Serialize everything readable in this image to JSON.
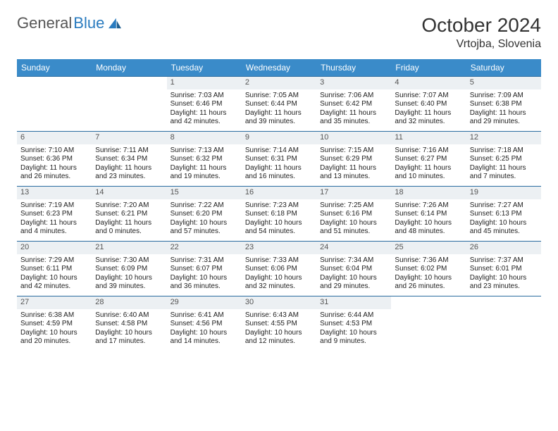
{
  "brand": {
    "name1": "General",
    "name2": "Blue"
  },
  "title": "October 2024",
  "location": "Vrtojba, Slovenia",
  "colors": {
    "header_bg": "#3a8bc9",
    "header_text": "#ffffff",
    "row_rule": "#2a6ca0",
    "daynum_bg": "#ecf0f3",
    "text": "#222222",
    "brand_gray": "#555555",
    "brand_blue": "#2a7bbf",
    "page_bg": "#ffffff"
  },
  "day_headers": [
    "Sunday",
    "Monday",
    "Tuesday",
    "Wednesday",
    "Thursday",
    "Friday",
    "Saturday"
  ],
  "weeks": [
    [
      null,
      null,
      {
        "n": "1",
        "sr": "Sunrise: 7:03 AM",
        "ss": "Sunset: 6:46 PM",
        "dl": "Daylight: 11 hours and 42 minutes."
      },
      {
        "n": "2",
        "sr": "Sunrise: 7:05 AM",
        "ss": "Sunset: 6:44 PM",
        "dl": "Daylight: 11 hours and 39 minutes."
      },
      {
        "n": "3",
        "sr": "Sunrise: 7:06 AM",
        "ss": "Sunset: 6:42 PM",
        "dl": "Daylight: 11 hours and 35 minutes."
      },
      {
        "n": "4",
        "sr": "Sunrise: 7:07 AM",
        "ss": "Sunset: 6:40 PM",
        "dl": "Daylight: 11 hours and 32 minutes."
      },
      {
        "n": "5",
        "sr": "Sunrise: 7:09 AM",
        "ss": "Sunset: 6:38 PM",
        "dl": "Daylight: 11 hours and 29 minutes."
      }
    ],
    [
      {
        "n": "6",
        "sr": "Sunrise: 7:10 AM",
        "ss": "Sunset: 6:36 PM",
        "dl": "Daylight: 11 hours and 26 minutes."
      },
      {
        "n": "7",
        "sr": "Sunrise: 7:11 AM",
        "ss": "Sunset: 6:34 PM",
        "dl": "Daylight: 11 hours and 23 minutes."
      },
      {
        "n": "8",
        "sr": "Sunrise: 7:13 AM",
        "ss": "Sunset: 6:32 PM",
        "dl": "Daylight: 11 hours and 19 minutes."
      },
      {
        "n": "9",
        "sr": "Sunrise: 7:14 AM",
        "ss": "Sunset: 6:31 PM",
        "dl": "Daylight: 11 hours and 16 minutes."
      },
      {
        "n": "10",
        "sr": "Sunrise: 7:15 AM",
        "ss": "Sunset: 6:29 PM",
        "dl": "Daylight: 11 hours and 13 minutes."
      },
      {
        "n": "11",
        "sr": "Sunrise: 7:16 AM",
        "ss": "Sunset: 6:27 PM",
        "dl": "Daylight: 11 hours and 10 minutes."
      },
      {
        "n": "12",
        "sr": "Sunrise: 7:18 AM",
        "ss": "Sunset: 6:25 PM",
        "dl": "Daylight: 11 hours and 7 minutes."
      }
    ],
    [
      {
        "n": "13",
        "sr": "Sunrise: 7:19 AM",
        "ss": "Sunset: 6:23 PM",
        "dl": "Daylight: 11 hours and 4 minutes."
      },
      {
        "n": "14",
        "sr": "Sunrise: 7:20 AM",
        "ss": "Sunset: 6:21 PM",
        "dl": "Daylight: 11 hours and 0 minutes."
      },
      {
        "n": "15",
        "sr": "Sunrise: 7:22 AM",
        "ss": "Sunset: 6:20 PM",
        "dl": "Daylight: 10 hours and 57 minutes."
      },
      {
        "n": "16",
        "sr": "Sunrise: 7:23 AM",
        "ss": "Sunset: 6:18 PM",
        "dl": "Daylight: 10 hours and 54 minutes."
      },
      {
        "n": "17",
        "sr": "Sunrise: 7:25 AM",
        "ss": "Sunset: 6:16 PM",
        "dl": "Daylight: 10 hours and 51 minutes."
      },
      {
        "n": "18",
        "sr": "Sunrise: 7:26 AM",
        "ss": "Sunset: 6:14 PM",
        "dl": "Daylight: 10 hours and 48 minutes."
      },
      {
        "n": "19",
        "sr": "Sunrise: 7:27 AM",
        "ss": "Sunset: 6:13 PM",
        "dl": "Daylight: 10 hours and 45 minutes."
      }
    ],
    [
      {
        "n": "20",
        "sr": "Sunrise: 7:29 AM",
        "ss": "Sunset: 6:11 PM",
        "dl": "Daylight: 10 hours and 42 minutes."
      },
      {
        "n": "21",
        "sr": "Sunrise: 7:30 AM",
        "ss": "Sunset: 6:09 PM",
        "dl": "Daylight: 10 hours and 39 minutes."
      },
      {
        "n": "22",
        "sr": "Sunrise: 7:31 AM",
        "ss": "Sunset: 6:07 PM",
        "dl": "Daylight: 10 hours and 36 minutes."
      },
      {
        "n": "23",
        "sr": "Sunrise: 7:33 AM",
        "ss": "Sunset: 6:06 PM",
        "dl": "Daylight: 10 hours and 32 minutes."
      },
      {
        "n": "24",
        "sr": "Sunrise: 7:34 AM",
        "ss": "Sunset: 6:04 PM",
        "dl": "Daylight: 10 hours and 29 minutes."
      },
      {
        "n": "25",
        "sr": "Sunrise: 7:36 AM",
        "ss": "Sunset: 6:02 PM",
        "dl": "Daylight: 10 hours and 26 minutes."
      },
      {
        "n": "26",
        "sr": "Sunrise: 7:37 AM",
        "ss": "Sunset: 6:01 PM",
        "dl": "Daylight: 10 hours and 23 minutes."
      }
    ],
    [
      {
        "n": "27",
        "sr": "Sunrise: 6:38 AM",
        "ss": "Sunset: 4:59 PM",
        "dl": "Daylight: 10 hours and 20 minutes."
      },
      {
        "n": "28",
        "sr": "Sunrise: 6:40 AM",
        "ss": "Sunset: 4:58 PM",
        "dl": "Daylight: 10 hours and 17 minutes."
      },
      {
        "n": "29",
        "sr": "Sunrise: 6:41 AM",
        "ss": "Sunset: 4:56 PM",
        "dl": "Daylight: 10 hours and 14 minutes."
      },
      {
        "n": "30",
        "sr": "Sunrise: 6:43 AM",
        "ss": "Sunset: 4:55 PM",
        "dl": "Daylight: 10 hours and 12 minutes."
      },
      {
        "n": "31",
        "sr": "Sunrise: 6:44 AM",
        "ss": "Sunset: 4:53 PM",
        "dl": "Daylight: 10 hours and 9 minutes."
      },
      null,
      null
    ]
  ]
}
